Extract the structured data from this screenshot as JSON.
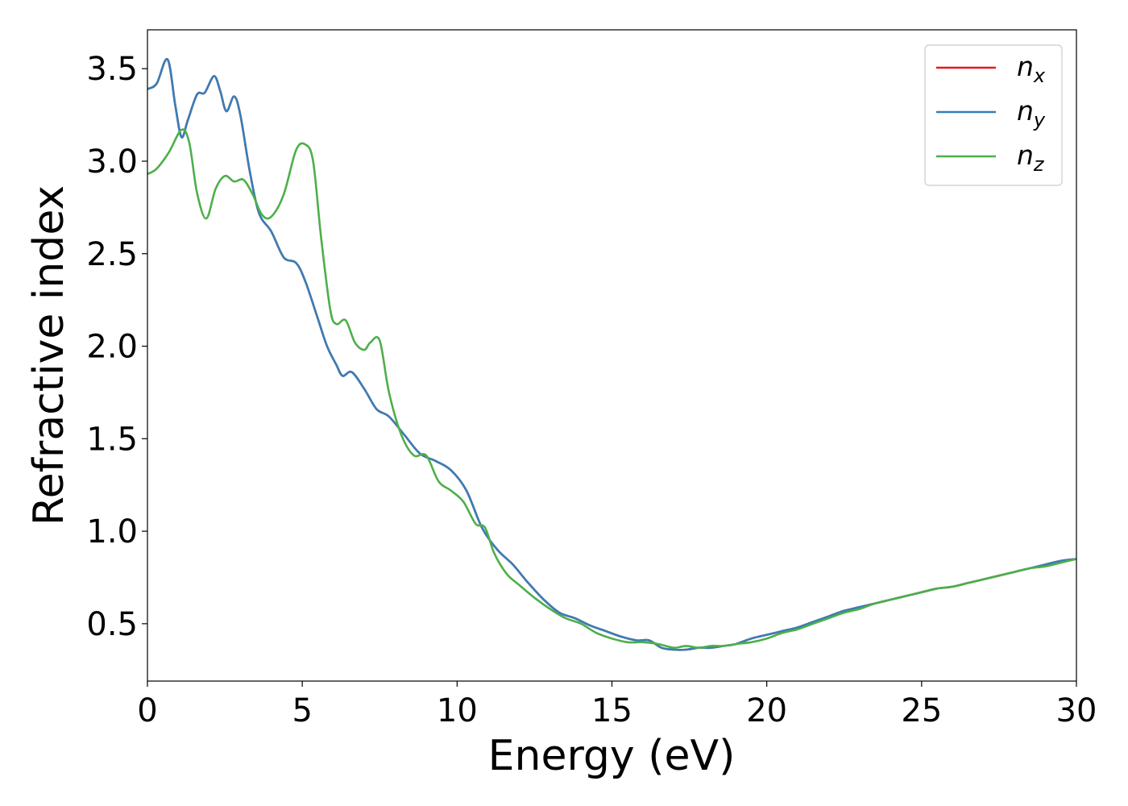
{
  "chart_data": {
    "type": "line",
    "title": "",
    "xlabel": "Energy (eV)",
    "ylabel": "Refractive index",
    "xlim": [
      0,
      30
    ],
    "ylim": [
      0.19,
      3.71
    ],
    "xticks": [
      "0",
      "5",
      "10",
      "15",
      "20",
      "25",
      "30"
    ],
    "yticks": [
      "0.5",
      "1.0",
      "1.5",
      "2.0",
      "2.5",
      "3.0",
      "3.5"
    ],
    "grid": false,
    "legend_position": "top-right",
    "series": [
      {
        "name": "n",
        "subscript": "x",
        "color": "#e41a1c",
        "x": [
          0.0,
          0.3,
          0.65,
          0.9,
          1.1,
          1.3,
          1.6,
          1.85,
          2.15,
          2.35,
          2.55,
          2.8,
          3.0,
          3.3,
          3.6,
          4.0,
          4.4,
          4.8,
          5.1,
          5.5,
          5.8,
          6.1,
          6.3,
          6.6,
          7.0,
          7.4,
          7.8,
          8.3,
          8.8,
          9.3,
          9.8,
          10.3,
          10.8,
          11.3,
          11.8,
          12.3,
          12.8,
          13.3,
          13.8,
          14.3,
          14.8,
          15.3,
          15.8,
          16.2,
          16.6,
          17.0,
          17.4,
          17.8,
          18.2,
          18.6,
          19.0,
          19.5,
          20.0,
          20.5,
          21.0,
          21.5,
          22.0,
          22.5,
          23.0,
          23.5,
          24.0,
          24.5,
          25.0,
          25.5,
          26.0,
          26.5,
          27.0,
          27.5,
          28.0,
          28.5,
          29.0,
          29.5,
          30.0
        ],
        "values": [
          3.39,
          3.42,
          3.55,
          3.3,
          3.13,
          3.22,
          3.36,
          3.37,
          3.46,
          3.38,
          3.27,
          3.35,
          3.25,
          2.95,
          2.72,
          2.62,
          2.48,
          2.45,
          2.35,
          2.15,
          2.0,
          1.9,
          1.84,
          1.86,
          1.77,
          1.66,
          1.62,
          1.52,
          1.42,
          1.38,
          1.33,
          1.22,
          1.02,
          0.9,
          0.82,
          0.72,
          0.63,
          0.56,
          0.53,
          0.49,
          0.46,
          0.43,
          0.41,
          0.41,
          0.37,
          0.36,
          0.36,
          0.37,
          0.37,
          0.38,
          0.39,
          0.42,
          0.44,
          0.46,
          0.48,
          0.51,
          0.54,
          0.57,
          0.59,
          0.61,
          0.63,
          0.65,
          0.67,
          0.69,
          0.7,
          0.72,
          0.74,
          0.76,
          0.78,
          0.8,
          0.82,
          0.84,
          0.85
        ]
      },
      {
        "name": "n",
        "subscript": "y",
        "color": "#377eb8",
        "x": [
          0.0,
          0.3,
          0.65,
          0.9,
          1.1,
          1.3,
          1.6,
          1.85,
          2.15,
          2.35,
          2.55,
          2.8,
          3.0,
          3.3,
          3.6,
          4.0,
          4.4,
          4.8,
          5.1,
          5.5,
          5.8,
          6.1,
          6.3,
          6.6,
          7.0,
          7.4,
          7.8,
          8.3,
          8.8,
          9.3,
          9.8,
          10.3,
          10.8,
          11.3,
          11.8,
          12.3,
          12.8,
          13.3,
          13.8,
          14.3,
          14.8,
          15.3,
          15.8,
          16.2,
          16.6,
          17.0,
          17.4,
          17.8,
          18.2,
          18.6,
          19.0,
          19.5,
          20.0,
          20.5,
          21.0,
          21.5,
          22.0,
          22.5,
          23.0,
          23.5,
          24.0,
          24.5,
          25.0,
          25.5,
          26.0,
          26.5,
          27.0,
          27.5,
          28.0,
          28.5,
          29.0,
          29.5,
          30.0
        ],
        "values": [
          3.39,
          3.42,
          3.55,
          3.3,
          3.13,
          3.22,
          3.36,
          3.37,
          3.46,
          3.38,
          3.27,
          3.35,
          3.25,
          2.95,
          2.72,
          2.62,
          2.48,
          2.45,
          2.35,
          2.15,
          2.0,
          1.9,
          1.84,
          1.86,
          1.77,
          1.66,
          1.62,
          1.52,
          1.42,
          1.38,
          1.33,
          1.22,
          1.02,
          0.9,
          0.82,
          0.72,
          0.63,
          0.56,
          0.53,
          0.49,
          0.46,
          0.43,
          0.41,
          0.41,
          0.37,
          0.36,
          0.36,
          0.37,
          0.37,
          0.38,
          0.39,
          0.42,
          0.44,
          0.46,
          0.48,
          0.51,
          0.54,
          0.57,
          0.59,
          0.61,
          0.63,
          0.65,
          0.67,
          0.69,
          0.7,
          0.72,
          0.74,
          0.76,
          0.78,
          0.8,
          0.82,
          0.84,
          0.85
        ]
      },
      {
        "name": "n",
        "subscript": "z",
        "color": "#4daf4a",
        "x": [
          0.0,
          0.3,
          0.7,
          1.1,
          1.35,
          1.6,
          1.9,
          2.2,
          2.5,
          2.8,
          3.1,
          3.4,
          3.7,
          4.0,
          4.4,
          4.8,
          5.1,
          5.35,
          5.6,
          5.9,
          6.1,
          6.4,
          6.7,
          7.0,
          7.2,
          7.5,
          7.8,
          8.2,
          8.6,
          9.0,
          9.4,
          9.8,
          10.2,
          10.6,
          10.9,
          11.2,
          11.6,
          12.0,
          12.5,
          13.0,
          13.5,
          14.0,
          14.5,
          15.0,
          15.5,
          16.0,
          16.5,
          17.0,
          17.4,
          17.8,
          18.2,
          18.6,
          19.0,
          19.5,
          20.0,
          20.5,
          21.0,
          21.5,
          22.0,
          22.5,
          23.0,
          23.5,
          24.0,
          24.5,
          25.0,
          25.5,
          26.0,
          26.5,
          27.0,
          27.5,
          28.0,
          28.5,
          29.0,
          29.5,
          30.0
        ],
        "values": [
          2.93,
          2.96,
          3.05,
          3.17,
          3.1,
          2.83,
          2.69,
          2.85,
          2.92,
          2.89,
          2.9,
          2.82,
          2.71,
          2.7,
          2.82,
          3.06,
          3.09,
          3.0,
          2.6,
          2.2,
          2.12,
          2.14,
          2.02,
          1.98,
          2.02,
          2.03,
          1.75,
          1.52,
          1.41,
          1.41,
          1.27,
          1.22,
          1.16,
          1.04,
          1.02,
          0.88,
          0.77,
          0.71,
          0.64,
          0.58,
          0.53,
          0.5,
          0.45,
          0.42,
          0.4,
          0.4,
          0.39,
          0.37,
          0.38,
          0.37,
          0.38,
          0.38,
          0.39,
          0.4,
          0.42,
          0.45,
          0.47,
          0.5,
          0.53,
          0.56,
          0.58,
          0.61,
          0.63,
          0.65,
          0.67,
          0.69,
          0.7,
          0.72,
          0.74,
          0.76,
          0.78,
          0.8,
          0.81,
          0.83,
          0.85
        ]
      }
    ]
  }
}
